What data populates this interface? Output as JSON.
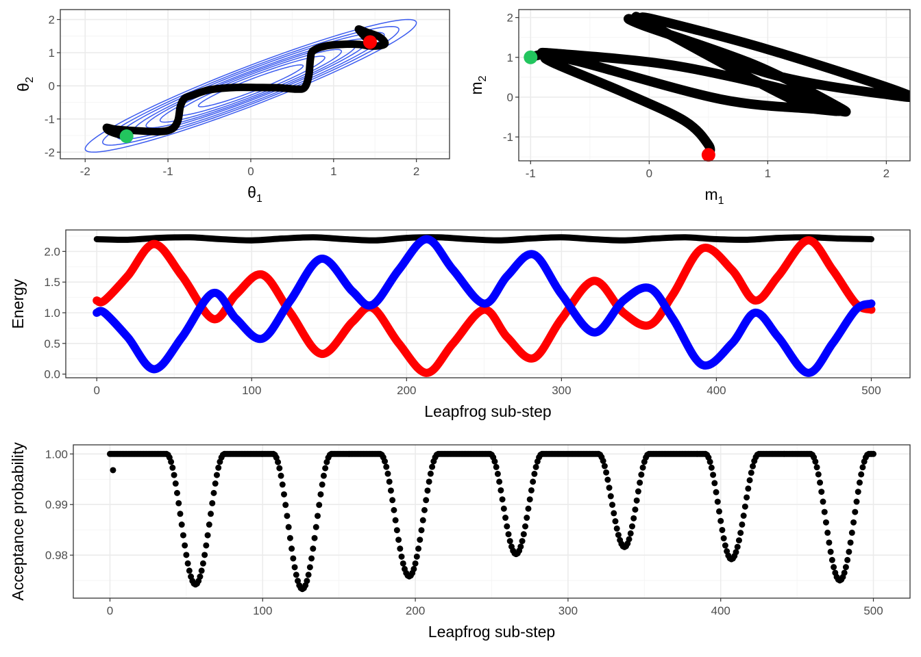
{
  "chart_data": [
    {
      "id": "theta",
      "type": "line",
      "title": "",
      "xlabel": "θ",
      "xlabel_sub": "1",
      "ylabel": "θ",
      "ylabel_sub": "2",
      "xlim": [
        -2.3,
        2.4
      ],
      "ylim": [
        -2.2,
        2.3
      ],
      "x_ticks": [
        -2,
        -1,
        0,
        1,
        2
      ],
      "y_ticks": [
        -2,
        -1,
        0,
        1,
        2
      ],
      "contour_color": "#3b5bef",
      "contour_levels": [
        0.4,
        0.8,
        1.2,
        1.6,
        2.0,
        2.6,
        3.2,
        4.0
      ],
      "contour_correlation": 0.95,
      "trajectory_color": "#000000",
      "trajectory": {
        "x": [
          -1.5,
          -1.62,
          -1.72,
          -1.74,
          -1.65,
          -1.4,
          -1.1,
          -0.95,
          -0.88,
          -0.85,
          -0.8,
          -0.7,
          -0.5,
          -0.2,
          0.1,
          0.35,
          0.55,
          0.65,
          0.7,
          0.72,
          0.75,
          0.9,
          1.1,
          1.3,
          1.45,
          1.58,
          1.62,
          1.55,
          1.4,
          1.3,
          1.44
        ],
        "y": [
          -1.52,
          -1.45,
          -1.35,
          -1.25,
          -1.3,
          -1.35,
          -1.38,
          -1.3,
          -1.05,
          -0.62,
          -0.38,
          -0.28,
          -0.12,
          -0.05,
          -0.05,
          -0.06,
          -0.1,
          -0.05,
          0.3,
          0.8,
          1.05,
          1.2,
          1.25,
          1.25,
          1.2,
          1.22,
          1.3,
          1.48,
          1.62,
          1.7,
          1.32
        ]
      },
      "start_point": {
        "x": -1.5,
        "y": -1.52,
        "color": "#22c55e"
      },
      "end_point": {
        "x": 1.44,
        "y": 1.32,
        "color": "#ff0000"
      }
    },
    {
      "id": "momentum",
      "type": "scatter",
      "title": "",
      "xlabel": "m",
      "xlabel_sub": "1",
      "ylabel": "m",
      "ylabel_sub": "2",
      "xlim": [
        -1.1,
        2.2
      ],
      "ylim": [
        -1.6,
        2.2
      ],
      "x_ticks": [
        -1,
        0,
        1,
        2
      ],
      "y_ticks": [
        -1,
        0,
        1,
        2
      ],
      "trajectory_color": "#000000",
      "trajectory": {
        "x": [
          -1.0,
          -0.9,
          -0.8,
          0.2,
          1.2,
          1.55,
          1.6,
          1.55,
          1.2,
          0.0,
          -0.05,
          0.05,
          1.0,
          2.1,
          2.05,
          1.0,
          -0.05,
          -0.05,
          0.9,
          1.6,
          1.6,
          1.4,
          0.6,
          -0.6,
          -0.85,
          -0.8,
          -0.2,
          0.3,
          0.5,
          0.5
        ],
        "y": [
          1.0,
          1.08,
          1.1,
          0.8,
          0.15,
          -0.25,
          -0.35,
          -0.3,
          -0.05,
          1.85,
          1.95,
          1.95,
          1.2,
          0.15,
          0.05,
          0.6,
          1.85,
          1.8,
          0.8,
          -0.25,
          -0.35,
          -0.3,
          -0.05,
          0.9,
          1.0,
          0.85,
          0.1,
          -0.6,
          -1.2,
          -1.45
        ]
      },
      "start_point": {
        "x": -1.0,
        "y": 1.0,
        "color": "#22c55e"
      },
      "end_point": {
        "x": 0.5,
        "y": -1.45,
        "color": "#ff0000"
      }
    },
    {
      "id": "energy",
      "type": "line",
      "title": "",
      "xlabel": "Leapfrog sub-step",
      "ylabel": "Energy",
      "xlim": [
        -20,
        525
      ],
      "ylim": [
        -0.06,
        2.35
      ],
      "x_ticks": [
        0,
        100,
        200,
        300,
        400,
        500
      ],
      "y_ticks": [
        0.0,
        0.5,
        1.0,
        1.5,
        2.0
      ],
      "y_tick_labels": [
        "0.0",
        "0.5",
        "1.0",
        "1.5",
        "2.0"
      ],
      "series": [
        {
          "color": "#000000",
          "x": [
            0,
            20,
            40,
            60,
            80,
            100,
            120,
            140,
            160,
            180,
            200,
            220,
            240,
            260,
            280,
            300,
            320,
            340,
            360,
            380,
            400,
            420,
            440,
            460,
            480,
            500
          ],
          "values": [
            2.2,
            2.19,
            2.22,
            2.23,
            2.2,
            2.18,
            2.21,
            2.23,
            2.2,
            2.18,
            2.22,
            2.23,
            2.2,
            2.18,
            2.21,
            2.23,
            2.2,
            2.18,
            2.21,
            2.23,
            2.2,
            2.19,
            2.22,
            2.23,
            2.21,
            2.2
          ]
        },
        {
          "color": "#ff0000",
          "x": [
            0,
            5,
            20,
            37,
            55,
            75,
            90,
            107,
            125,
            145,
            165,
            178,
            195,
            213,
            230,
            250,
            265,
            282,
            300,
            321,
            340,
            357,
            372,
            391,
            410,
            425,
            440,
            459,
            475,
            490,
            500
          ],
          "values": [
            1.2,
            1.2,
            1.6,
            2.12,
            1.6,
            0.9,
            1.3,
            1.62,
            1.0,
            0.33,
            0.85,
            1.08,
            0.5,
            0.02,
            0.5,
            1.05,
            0.6,
            0.26,
            0.9,
            1.52,
            1.0,
            0.8,
            1.3,
            2.05,
            1.7,
            1.2,
            1.6,
            2.18,
            1.7,
            1.15,
            1.05
          ]
        },
        {
          "color": "#0000ff",
          "x": [
            0,
            5,
            20,
            37,
            55,
            75,
            90,
            107,
            125,
            145,
            165,
            178,
            195,
            213,
            230,
            250,
            265,
            282,
            300,
            321,
            340,
            357,
            372,
            391,
            410,
            425,
            440,
            459,
            475,
            490,
            500
          ],
          "values": [
            1.0,
            1.0,
            0.6,
            0.08,
            0.6,
            1.32,
            0.9,
            0.58,
            1.2,
            1.88,
            1.35,
            1.13,
            1.7,
            2.2,
            1.7,
            1.15,
            1.6,
            1.95,
            1.3,
            0.68,
            1.2,
            1.4,
            0.9,
            0.15,
            0.5,
            1.0,
            0.6,
            0.02,
            0.5,
            1.05,
            1.15
          ]
        }
      ]
    },
    {
      "id": "acceptance",
      "type": "scatter",
      "title": "",
      "xlabel": "Leapfrog sub-step",
      "ylabel": "Acceptance probability",
      "xlim": [
        -24,
        524
      ],
      "ylim": [
        0.9715,
        1.0018
      ],
      "x_ticks": [
        0,
        100,
        200,
        300,
        400,
        500
      ],
      "y_ticks": [
        0.98,
        0.99,
        1.0
      ],
      "y_tick_labels": [
        "0.98",
        "0.99",
        "1.00"
      ],
      "point_color": "#000000",
      "flat_value": 1.0,
      "dips": [
        {
          "start": 37,
          "end": 75,
          "min_x": 56,
          "min": 0.9742
        },
        {
          "start": 107,
          "end": 145,
          "min_x": 126,
          "min": 0.9733
        },
        {
          "start": 177,
          "end": 215,
          "min_x": 196,
          "min": 0.9758
        },
        {
          "start": 249,
          "end": 283,
          "min_x": 266,
          "min": 0.9802
        },
        {
          "start": 320,
          "end": 353,
          "min_x": 337,
          "min": 0.9816
        },
        {
          "start": 390,
          "end": 425,
          "min_x": 407,
          "min": 0.9792
        },
        {
          "start": 459,
          "end": 497,
          "min_x": 478,
          "min": 0.975
        }
      ],
      "first_point": {
        "x": 2,
        "y": 0.9968
      }
    }
  ]
}
